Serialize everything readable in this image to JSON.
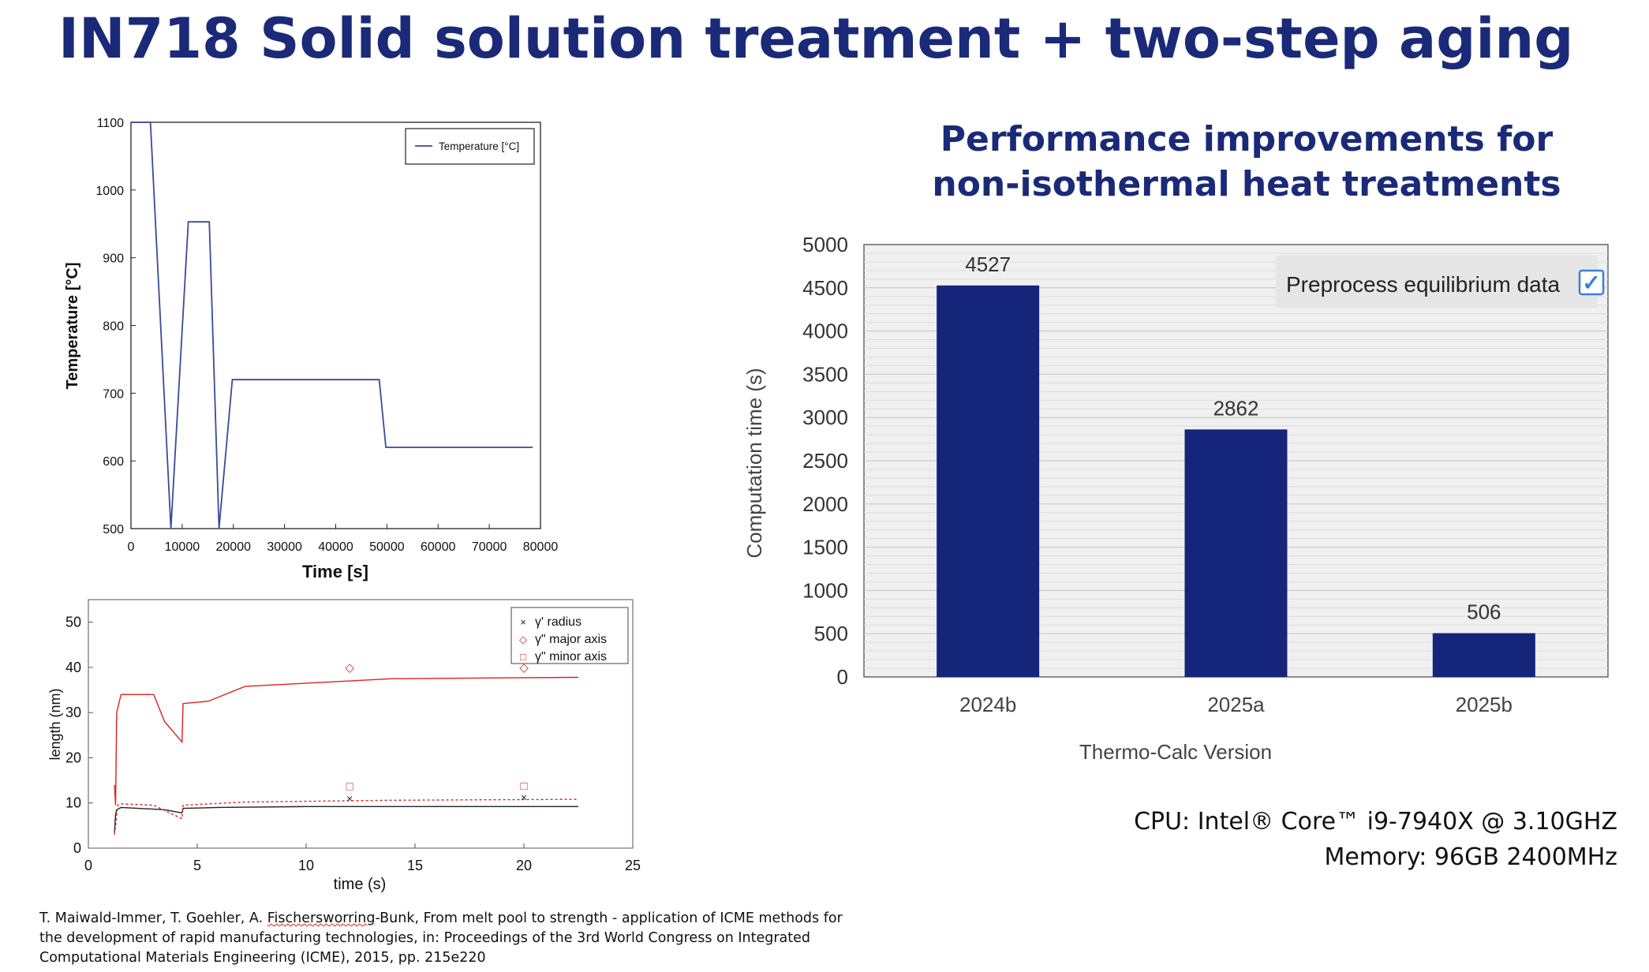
{
  "slide": {
    "title": "IN718 Solid solution treatment + two-step aging"
  },
  "temperature_chart": {
    "ylabel": "Temperature [°C]",
    "xlabel": "Time [s]",
    "legend": "Temperature [°C]",
    "y_ticks": [
      "1100",
      "1000",
      "900",
      "800",
      "700",
      "600",
      "500"
    ],
    "x_ticks": [
      "0",
      "10000",
      "20000",
      "30000",
      "40000",
      "50000",
      "60000",
      "70000",
      "80000"
    ]
  },
  "length_chart": {
    "ylabel": "length (nm)",
    "xlabel": "time (s)",
    "y_ticks": [
      "50",
      "40",
      "30",
      "20",
      "10",
      "0"
    ],
    "x_ticks": [
      "0",
      "5",
      "10",
      "15",
      "20",
      "25"
    ],
    "legend": [
      {
        "marker": "×",
        "label": "γ' radius",
        "color": "#222222"
      },
      {
        "marker": "◇",
        "label": "γ\" major axis",
        "color": "#e02020"
      },
      {
        "marker": "□",
        "label": "γ\" minor axis",
        "color": "#e02020"
      }
    ]
  },
  "bar_chart": {
    "title_line1": "Performance improvements for",
    "title_line2": "non-isothermal heat treatments",
    "ylabel": "Computation time (s)",
    "xlabel": "Thermo-Calc Version",
    "legend_text": "Preprocess equilibrium data",
    "legend_check": "✓",
    "y_ticks": [
      "0",
      "500",
      "1000",
      "1500",
      "2000",
      "2500",
      "3000",
      "3500",
      "4000",
      "4500",
      "5000"
    ]
  },
  "hardware": {
    "cpu": "CPU: Intel® Core™ i9-7940X @ 3.10GHZ",
    "memory": "Memory: 96GB 2400MHz"
  },
  "citation": {
    "part1": "T. Maiwald-Immer, T. Goehler, A. ",
    "underlined": "Fischersworring",
    "part2": "-Bunk, From melt pool to strength - application of ICME methods for",
    "line2": "the development of rapid manufacturing technologies, in: Proceedings of the 3rd World Congress on Integrated",
    "line3": "Computational Materials Engineering (ICME), 2015, pp. 215e220"
  },
  "colors": {
    "title": "#1a2a78",
    "bar": "#14257a",
    "temperature_line": "#3a4a9a",
    "red_curve": "#e02020"
  },
  "chart_data": [
    {
      "type": "line",
      "series": [
        {
          "name": "Temperature [°C]",
          "x": [
            0,
            3800,
            7800,
            11200,
            15300,
            17200,
            19800,
            28000,
            48500,
            49800,
            78500
          ],
          "y": [
            1100,
            1100,
            500,
            953,
            953,
            500,
            720,
            720,
            720,
            620,
            620
          ]
        }
      ],
      "xlabel": "Time [s]",
      "ylabel": "Temperature [°C]",
      "xlim": [
        0,
        80000
      ],
      "ylim": [
        500,
        1100
      ]
    },
    {
      "type": "line",
      "series": [
        {
          "x": [
            1.2,
            1.25,
            1.3,
            1.35,
            1.5,
            3.0,
            3.5,
            4.3,
            4.35,
            5.5,
            7.2,
            14,
            22.5
          ],
          "y": [
            14,
            9.5,
            30,
            31,
            34,
            34,
            28,
            23.5,
            32,
            32.5,
            35.8,
            37.5,
            37.8
          ]
        },
        {
          "x": [
            1.2,
            1.25,
            1.3,
            1.5,
            3.5,
            4.3,
            4.35,
            6,
            10,
            22.5
          ],
          "y": [
            3.5,
            7.5,
            8.5,
            9,
            8.5,
            7.8,
            8.8,
            9,
            9.2,
            9.2
          ]
        },
        {
          "x": [
            1.2,
            1.25,
            1.35,
            1.5,
            3.0,
            4.3,
            4.35,
            7.2,
            14,
            22.5
          ],
          "y": [
            3,
            5,
            9.5,
            9.8,
            9.5,
            6.5,
            9.5,
            10.2,
            10.6,
            10.8
          ]
        },
        {
          "name": "γ' radius",
          "x": [
            12,
            20
          ],
          "y": [
            11,
            11.3
          ]
        },
        {
          "name": "γ\" major axis",
          "x": [
            12,
            20
          ],
          "y": [
            40,
            40
          ]
        },
        {
          "name": "γ\" minor axis",
          "x": [
            12,
            20
          ],
          "y": [
            13.7,
            13.8
          ]
        }
      ],
      "xlabel": "time (s)",
      "ylabel": "length (nm)",
      "xlim": [
        0,
        25
      ],
      "ylim": [
        0,
        55
      ]
    },
    {
      "type": "bar",
      "title": "Performance improvements for non-isothermal heat treatments",
      "categories": [
        "2024b",
        "2025a",
        "2025b"
      ],
      "values": [
        4527,
        2862,
        506
      ],
      "xlabel": "Thermo-Calc Version",
      "ylabel": "Computation time (s)",
      "ylim": [
        0,
        5000
      ],
      "legend": "Preprocess equilibrium data",
      "legend_position": "top-right"
    }
  ]
}
